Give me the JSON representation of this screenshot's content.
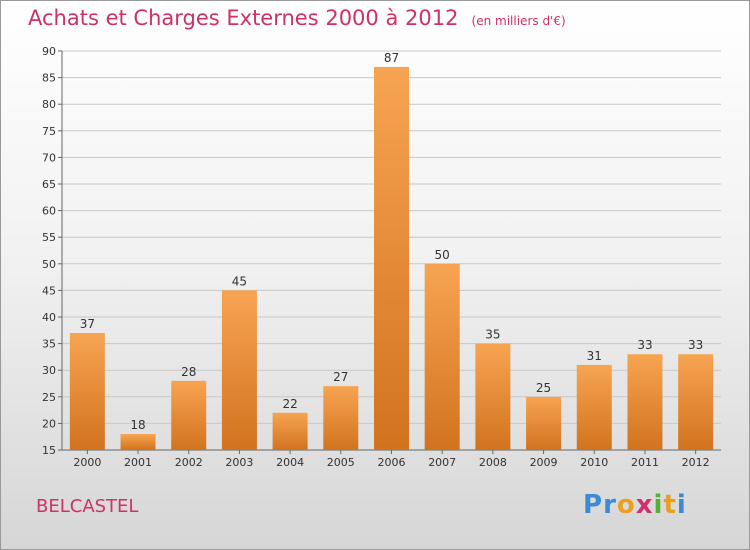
{
  "header": {
    "title": "Achats et Charges Externes 2000 à 2012",
    "subtitle": "(en milliers d'€)"
  },
  "footer": {
    "commune": "BELCASTEL",
    "logo_letters": [
      {
        "char": "P",
        "color": "#3a8ad6"
      },
      {
        "char": "r",
        "color": "#3a8ad6"
      },
      {
        "char": "o",
        "color": "#e8a020"
      },
      {
        "char": "x",
        "color": "#d03070"
      },
      {
        "char": "i",
        "color": "#58b030"
      },
      {
        "char": "t",
        "color": "#e8a020"
      },
      {
        "char": "i",
        "color": "#3a8ad6"
      }
    ]
  },
  "colors": {
    "bar_light": "#f7a452",
    "bar_dark": "#d2731e",
    "grid": "#c8c8c8",
    "axis": "#666666"
  },
  "chart_data": {
    "type": "bar",
    "title": "Achats et Charges Externes 2000 à 2012",
    "subtitle": "(en milliers d'€)",
    "xlabel": "",
    "ylabel": "",
    "categories": [
      "2000",
      "2001",
      "2002",
      "2003",
      "2004",
      "2005",
      "2006",
      "2007",
      "2008",
      "2009",
      "2010",
      "2011",
      "2012"
    ],
    "values": [
      37,
      18,
      28,
      45,
      22,
      27,
      87,
      50,
      35,
      25,
      31,
      33,
      33
    ],
    "ylim": [
      15,
      90
    ],
    "yticks": [
      15,
      20,
      25,
      30,
      35,
      40,
      45,
      50,
      55,
      60,
      65,
      70,
      75,
      80,
      85,
      90
    ],
    "grid": true,
    "legend": "none"
  }
}
